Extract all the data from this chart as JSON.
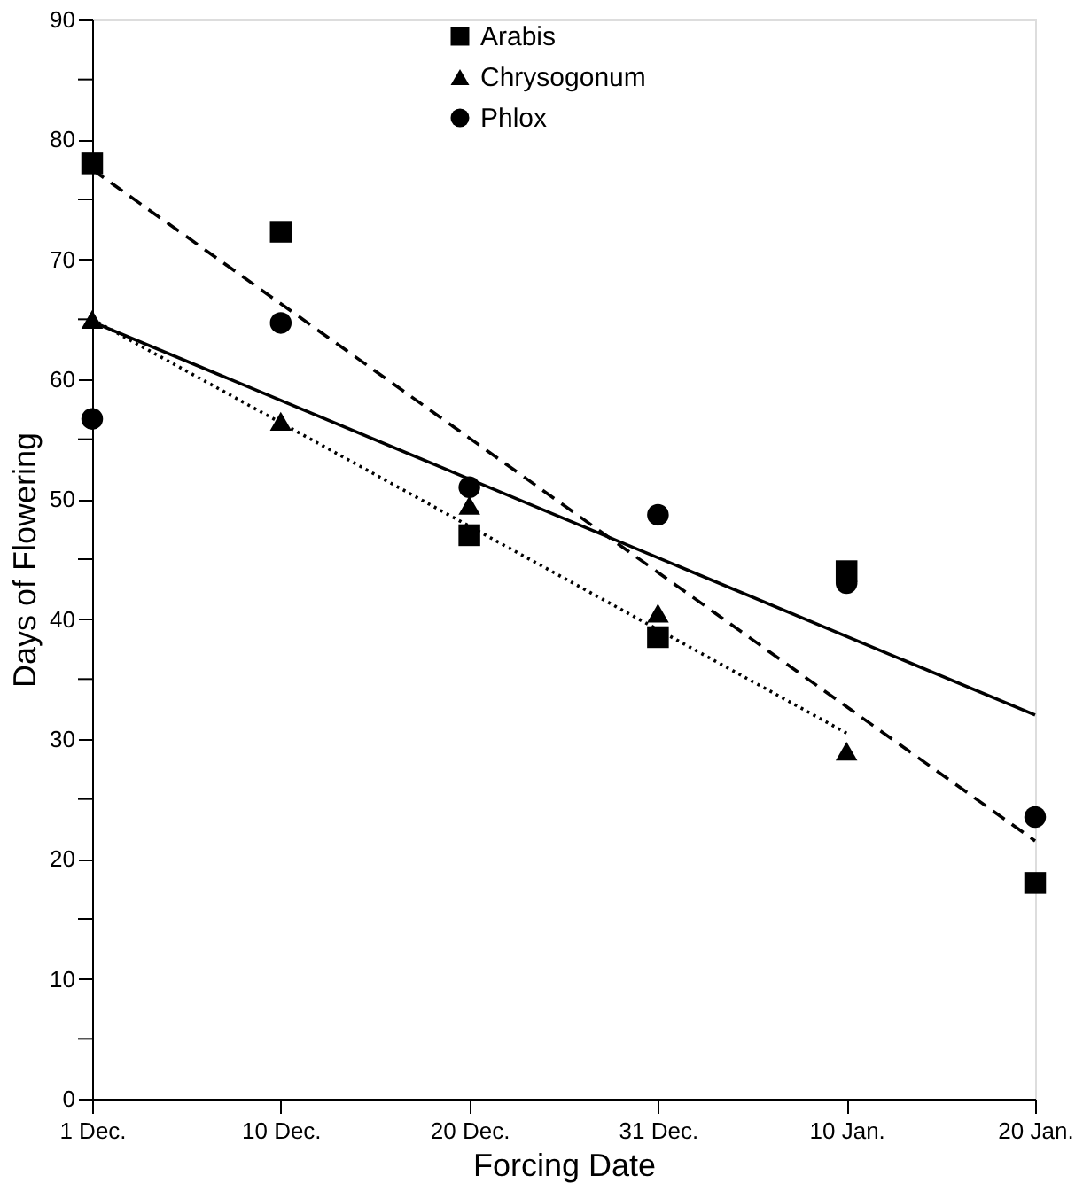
{
  "chart_data": {
    "type": "scatter",
    "xlabel": "Forcing Date",
    "ylabel": "Days of Flowering",
    "categories": [
      "1 Dec.",
      "10 Dec.",
      "20 Dec.",
      "31 Dec.",
      "10 Jan.",
      "20 Jan."
    ],
    "ylim": [
      0,
      90
    ],
    "yticks": [
      0,
      {
        "value": 5,
        "label": null
      },
      10,
      {
        "value": 15,
        "label": null
      },
      20,
      {
        "value": 25,
        "label": null
      },
      30,
      {
        "value": 35,
        "label": null
      },
      40,
      {
        "value": 45,
        "label": null
      },
      50,
      {
        "value": 55,
        "label": null
      },
      60,
      {
        "value": 65,
        "label": null
      },
      70,
      {
        "value": 75,
        "label": null
      },
      80,
      {
        "value": 85,
        "label": null
      },
      90
    ],
    "grid": false,
    "legend": "top",
    "series": [
      {
        "name": "Arabis",
        "marker": "square",
        "color": "#000000",
        "values": [
          78,
          72.3,
          47,
          38.5,
          44,
          18
        ]
      },
      {
        "name": "Chrysogonum",
        "marker": "triangle",
        "color": "#000000",
        "values": [
          65,
          56.5,
          49.5,
          40.5,
          29,
          null
        ]
      },
      {
        "name": "Phlox",
        "marker": "circle",
        "color": "#000000",
        "values": [
          56.7,
          64.7,
          51,
          48.7,
          43,
          23.5
        ]
      },
      {
        "type": "line",
        "line_style": "dashed",
        "marker": "none",
        "color": "#000000",
        "x": [
          "1 Dec.",
          "20 Jan."
        ],
        "values": [
          77.5,
          21.5
        ]
      },
      {
        "type": "line",
        "line_style": "dotted",
        "marker": "none",
        "color": "#000000",
        "x": [
          "1 Dec.",
          "10 Jan."
        ],
        "values": [
          65,
          30.5
        ]
      },
      {
        "type": "line",
        "line_style": "solid",
        "marker": "none",
        "color": "#000000",
        "x": [
          "1 Dec.",
          "20 Jan."
        ],
        "values": [
          64.8,
          32
        ]
      }
    ]
  }
}
